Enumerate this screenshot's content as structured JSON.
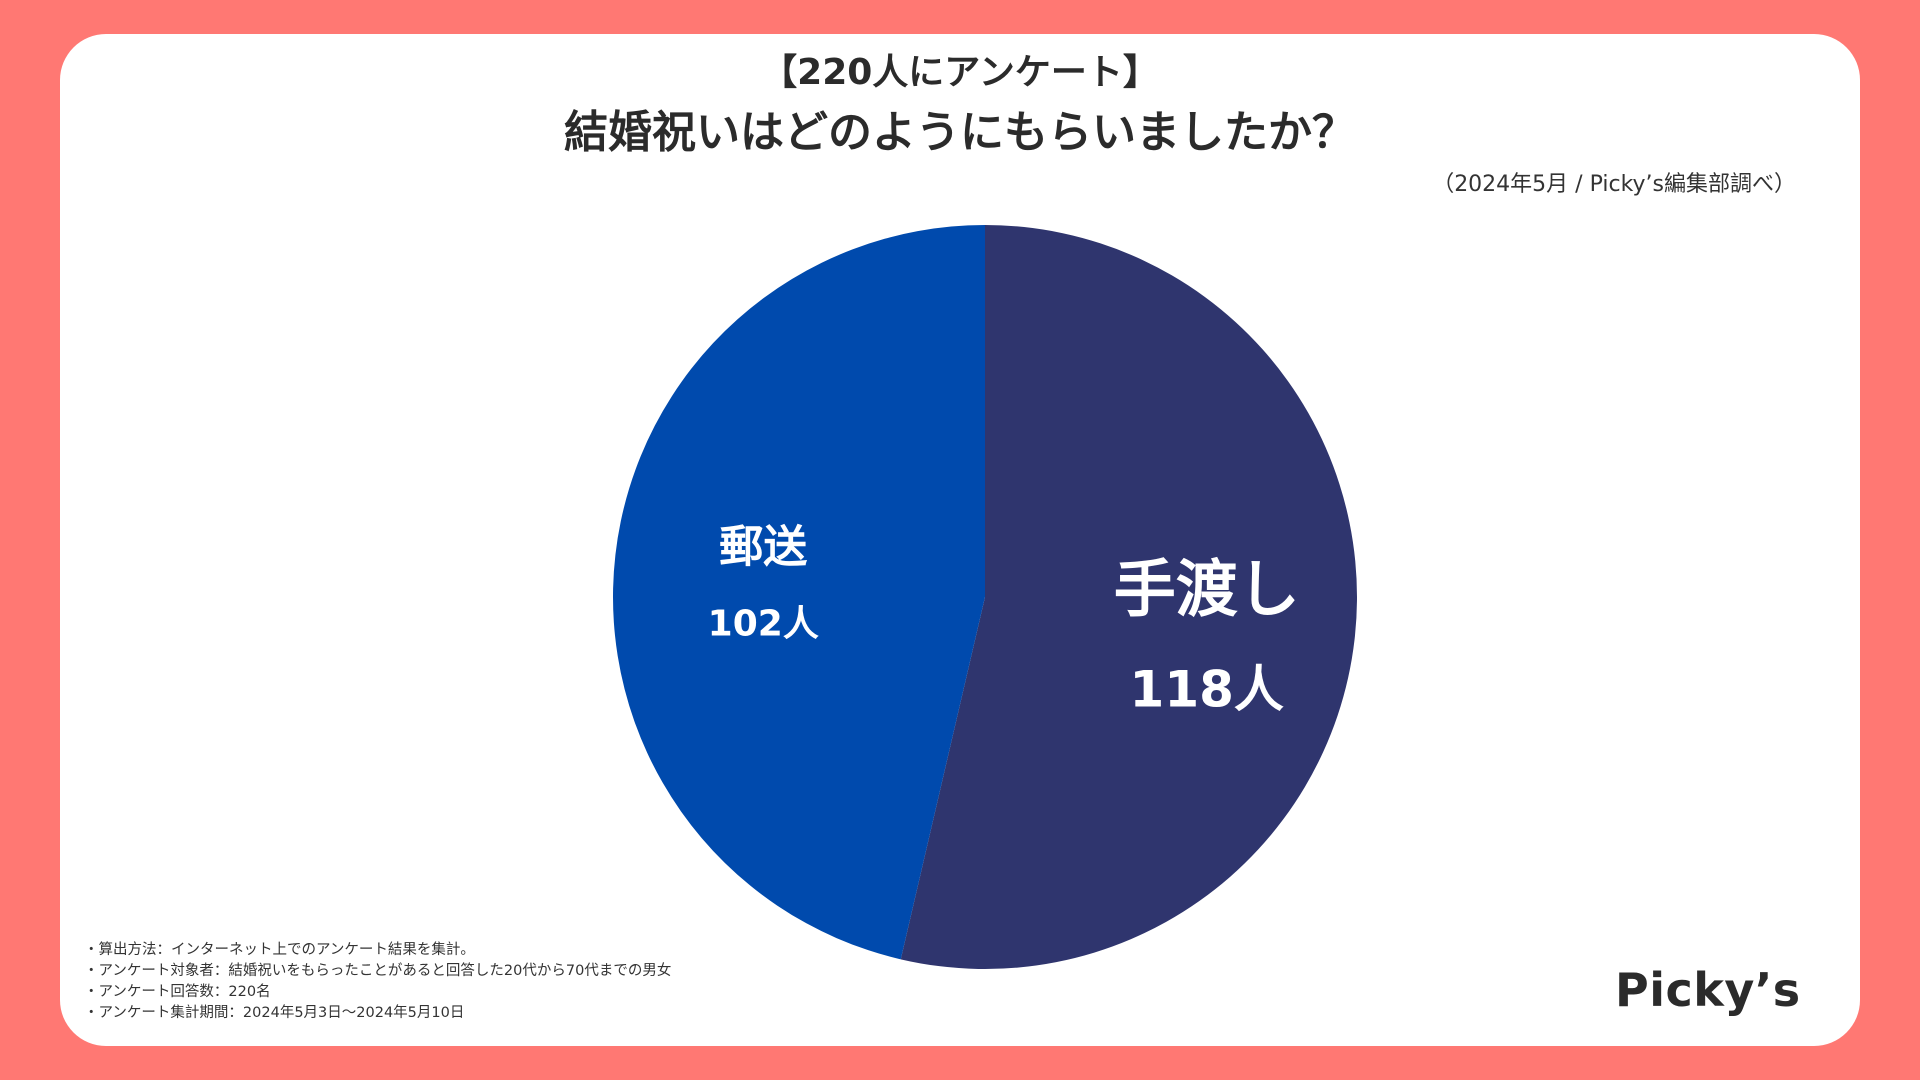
{
  "header": {
    "survey_tag": "【220人にアンケート】",
    "title": "結婚祝いはどのようにもらいましたか？",
    "source": "（2024年5月 / Picky’s編集部調べ）"
  },
  "colors": {
    "background": "#FF7873",
    "card": "#FFFFFF",
    "slice_handed": "#2F356E",
    "slice_mail": "#004AAD",
    "label_text": "#FFFFFF"
  },
  "chart_data": {
    "type": "pie",
    "title": "結婚祝いはどのようにもらいましたか？",
    "total": 220,
    "slices": [
      {
        "label": "手渡し",
        "value": 118,
        "value_label": "118人"
      },
      {
        "label": "郵送",
        "value": 102,
        "value_label": "102人"
      }
    ]
  },
  "notes": [
    "・算出方法：インターネット上でのアンケート結果を集計。",
    "・アンケート対象者：結婚祝いをもらったことがあると回答した20代から70代までの男女",
    "・アンケート回答数：220名",
    "・アンケート集計期間：2024年5月3日〜2024年5月10日"
  ],
  "logo": "Picky’s"
}
